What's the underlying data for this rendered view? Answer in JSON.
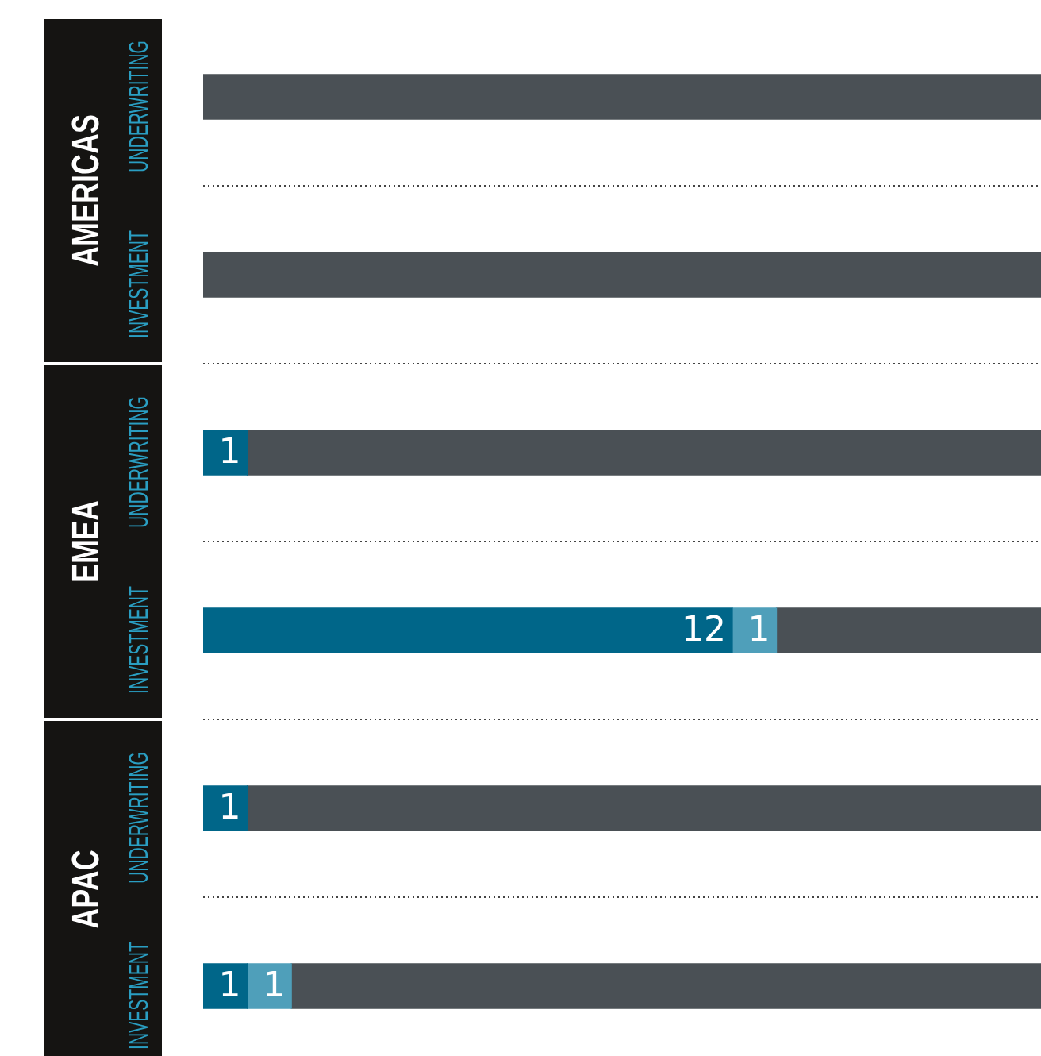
{
  "chart_data": {
    "type": "bar",
    "orientation": "horizontal",
    "stacked": true,
    "grid": "y",
    "xlim": [
      0,
      19
    ],
    "tick_labels": "y",
    "categories": [
      "UNDERWRITING",
      "INVESTMENT",
      "UNDERWRITING",
      "INVESTMENT",
      "UNDERWRITING",
      "INVESTMENT"
    ],
    "annotations": [
      "AMERICAS",
      "EMEA",
      "APAC"
    ],
    "series": [
      {
        "color": "#006689",
        "values": [
          null,
          null,
          1,
          12,
          1,
          1
        ],
        "value_labels": [
          null,
          null,
          "1",
          "12",
          "1",
          "1"
        ]
      },
      {
        "color": "#4f9fba",
        "values": [
          null,
          null,
          null,
          1,
          null,
          1
        ],
        "value_labels": [
          null,
          null,
          null,
          "1",
          null,
          "1"
        ]
      },
      {
        "color": "#4a5055",
        "values": [
          19,
          19,
          18,
          6,
          18,
          17
        ],
        "value_labels": [
          null,
          null,
          null,
          null,
          null,
          null
        ]
      }
    ]
  }
}
